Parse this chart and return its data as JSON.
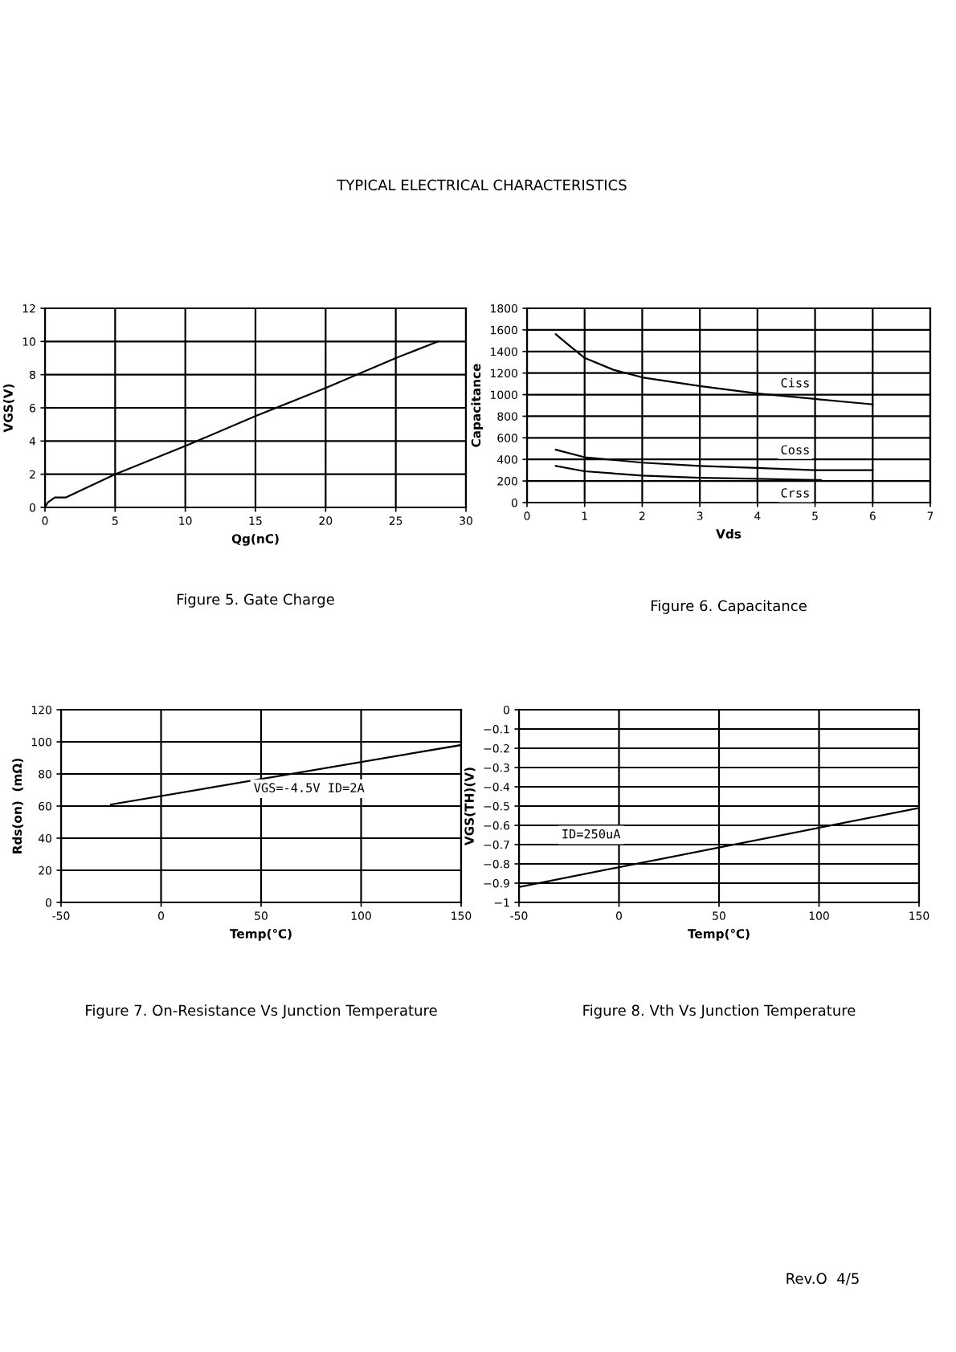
{
  "chart_data": [
    {
      "type": "line",
      "title": "Figure 5. Gate Charge",
      "xlabel": "Qg(nC)",
      "ylabel": "VGS(V)",
      "xlim": [
        0,
        30
      ],
      "xticks": [
        0,
        5,
        10,
        15,
        20,
        25,
        30
      ],
      "ylim": [
        0,
        12
      ],
      "yticks": [
        0,
        2,
        4,
        6,
        8,
        10,
        12
      ],
      "grid": true,
      "legend": false,
      "annotations": [
        "TYPICAL ELECTRICAL CHARACTERISTICS"
      ],
      "series": [
        {
          "color": "#000000",
          "x": [
            0,
            0.2,
            0.7,
            1.5,
            5,
            10,
            15,
            20,
            25,
            28
          ],
          "values": [
            0,
            0.3,
            0.6,
            0.6,
            2,
            3.7,
            5.5,
            7.2,
            9,
            10
          ]
        }
      ]
    },
    {
      "type": "line",
      "title": "Figure 6. Capacitance",
      "xlabel": "Vds",
      "ylabel": "Capacitance",
      "xlim": [
        0,
        7
      ],
      "xticks": [
        0,
        1,
        2,
        3,
        4,
        5,
        6,
        7
      ],
      "ylim": [
        0,
        1800
      ],
      "yticks": [
        0,
        200,
        400,
        600,
        800,
        1000,
        1200,
        1400,
        1600,
        1800
      ],
      "grid": true,
      "legend": false,
      "series": [
        {
          "name": "Ciss",
          "color": "#000000",
          "x": [
            0.5,
            0.7,
            1,
            1.5,
            2,
            3,
            4,
            5,
            6
          ],
          "values": [
            1560,
            1470,
            1340,
            1230,
            1160,
            1080,
            1010,
            960,
            910
          ]
        },
        {
          "name": "Coss",
          "color": "#000000",
          "x": [
            0.5,
            1,
            2,
            3,
            4,
            5,
            6
          ],
          "values": [
            490,
            420,
            370,
            340,
            320,
            300,
            300
          ]
        },
        {
          "name": "Crss",
          "color": "#000000",
          "x": [
            0.5,
            1,
            2,
            3,
            4,
            5,
            5.1
          ],
          "values": [
            340,
            290,
            250,
            230,
            220,
            210,
            210
          ]
        }
      ]
    },
    {
      "type": "line",
      "title": "Figure 7. On-Resistance Vs Junction Temperature",
      "xlabel": "Temp(℃)",
      "ylabel": "Rds(on)  (mΩ)",
      "xlim": [
        -50,
        150
      ],
      "xticks": [
        -50,
        0,
        50,
        100,
        150
      ],
      "ylim": [
        0,
        120
      ],
      "yticks": [
        0,
        20,
        40,
        60,
        80,
        100,
        120
      ],
      "grid": true,
      "legend": false,
      "annotations": [
        "VGS=-4.5V ID=2A"
      ],
      "series": [
        {
          "color": "#000000",
          "x": [
            -25,
            150
          ],
          "values": [
            61,
            98
          ]
        }
      ]
    },
    {
      "type": "line",
      "title": "Figure 8. Vth Vs Junction Temperature",
      "xlabel": "Temp(℃)",
      "ylabel": "VGS(TH)(V)",
      "xlim": [
        -50,
        150
      ],
      "xticks": [
        -50,
        0,
        50,
        100,
        150
      ],
      "ylim": [
        -1,
        0
      ],
      "yticks": [
        {
          "value": -1,
          "label": "−1"
        },
        {
          "value": -0.9,
          "label": "−0.9"
        },
        {
          "value": -0.8,
          "label": "−0.8"
        },
        {
          "value": -0.7,
          "label": "−0.7"
        },
        {
          "value": -0.6,
          "label": "−0.6"
        },
        {
          "value": -0.5,
          "label": "−0.5"
        },
        {
          "value": -0.4,
          "label": "−0.4"
        },
        {
          "value": -0.3,
          "label": "−0.3"
        },
        {
          "value": -0.2,
          "label": "−0.2"
        },
        {
          "value": -0.1,
          "label": "−0.1"
        },
        0
      ],
      "grid": true,
      "legend": false,
      "annotations": [
        "ID=250uA",
        "Rev.O  4/5"
      ],
      "series": [
        {
          "color": "#000000",
          "x": [
            -50,
            150
          ],
          "values": [
            -0.92,
            -0.51
          ]
        }
      ]
    }
  ]
}
